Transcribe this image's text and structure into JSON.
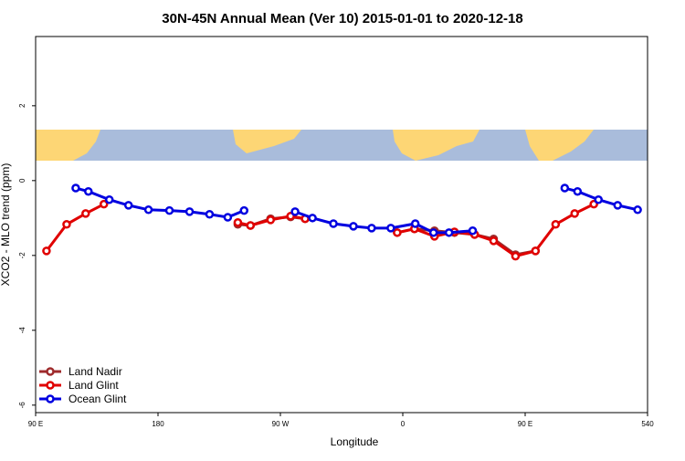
{
  "chart_data": {
    "type": "line",
    "title": "30N-45N Annual Mean (Ver 10)   2015-01-01 to 2020-12-18",
    "x_label": "Longitude",
    "y_label": "XCO2 - MLO trend (ppm)",
    "xlim": [
      90,
      540
    ],
    "ylim": [
      -6.2,
      3.85
    ],
    "xticks": [
      {
        "value": 90,
        "label": "90 E"
      },
      180,
      {
        "value": 270,
        "label": "90 W"
      },
      {
        "value": 360,
        "label": "0"
      },
      {
        "value": 450,
        "label": "90 E"
      },
      540
    ],
    "yticks": [
      2,
      0,
      -2,
      -4,
      -6
    ],
    "legend": "bottom-left",
    "series": [
      {
        "name": "Land Nadir",
        "color": "#9e2a2b",
        "x": [
          238.7,
          248.0,
          262.8,
          277.5,
          288.2,
          320,
          355.9,
          368.6,
          383.3,
          398.0,
          412.8,
          426.8,
          442.9,
          457.6
        ],
        "values": [
          -1.17,
          -1.2,
          -1.02,
          -0.97,
          -1.02,
          null,
          -1.39,
          -1.29,
          -1.34,
          -1.39,
          -1.44,
          -1.56,
          -1.98,
          -1.88
        ]
      },
      {
        "name": "Land Glint",
        "color": "#e00000",
        "x": [
          98.0,
          112.8,
          126.8,
          140.2,
          190,
          238.7,
          248.0,
          262.8,
          277.5,
          288.2,
          320,
          355.9,
          368.6,
          383.3,
          398.0,
          412.8,
          426.8,
          442.9,
          457.6,
          472.4,
          486.4,
          500.5
        ],
        "values": [
          -1.88,
          -1.17,
          -0.88,
          -0.63,
          null,
          -1.12,
          -1.2,
          -1.05,
          -0.95,
          -1.02,
          null,
          -1.39,
          -1.29,
          -1.49,
          -1.37,
          -1.44,
          -1.61,
          -2.02,
          -1.88,
          -1.17,
          -0.88,
          -0.63
        ]
      },
      {
        "name": "Ocean Glint",
        "color": "#0000e0",
        "x": [
          119.5,
          128.8,
          144.2,
          158.3,
          173.0,
          188.4,
          203.2,
          217.9,
          231.3,
          243.3,
          262,
          280.8,
          293.6,
          309.0,
          323.7,
          337.1,
          351.2,
          369.2,
          382.6,
          394.0,
          411.4,
          445,
          479.1,
          488.5,
          503.9,
          518.0,
          532.7
        ],
        "values": [
          -0.2,
          -0.29,
          -0.51,
          -0.66,
          -0.78,
          -0.8,
          -0.83,
          -0.9,
          -0.98,
          -0.8,
          null,
          -0.83,
          -1.0,
          -1.15,
          -1.22,
          -1.27,
          -1.27,
          -1.15,
          -1.39,
          -1.39,
          -1.34,
          null,
          -0.2,
          -0.29,
          -0.51,
          -0.66,
          -0.78
        ]
      }
    ]
  }
}
